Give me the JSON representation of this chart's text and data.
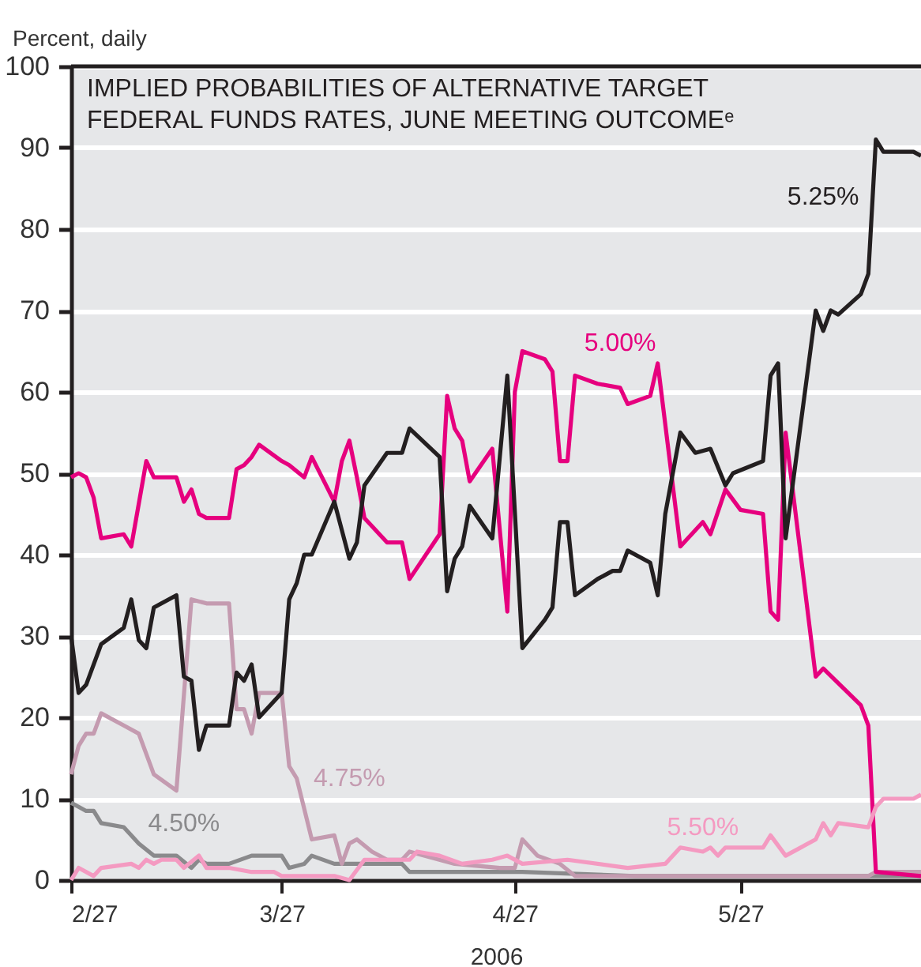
{
  "chart_data": {
    "type": "line",
    "title": "IMPLIED PROBABILITIES OF ALTERNATIVE TARGET\nFEDERAL FUNDS RATES, JUNE MEETING OUTCOMEᵉ",
    "ylabel": "Percent, daily",
    "xlabel": "2006",
    "xlim": [
      "2006-02-27",
      "2006-06-20"
    ],
    "xticks": [
      {
        "value": "2006-02-27",
        "label": "2/27"
      },
      {
        "value": "2006-03-27",
        "label": "3/27"
      },
      {
        "value": "2006-04-27",
        "label": "4/27"
      },
      {
        "value": "2006-05-27",
        "label": "5/27"
      }
    ],
    "ylim": [
      0,
      100
    ],
    "yticks": [
      0,
      10,
      20,
      30,
      40,
      50,
      60,
      70,
      80,
      90,
      100
    ],
    "grid": "y",
    "legend": false,
    "line_style": "solid",
    "marker": "none",
    "series": [
      {
        "name": "4.50%",
        "color": "#8a8a8c",
        "x": [
          "2006-02-27",
          "2006-02-28",
          "2006-03-01",
          "2006-03-02",
          "2006-03-03",
          "2006-03-06",
          "2006-03-08",
          "2006-03-10",
          "2006-03-13",
          "2006-03-15",
          "2006-03-16",
          "2006-03-17",
          "2006-03-20",
          "2006-03-23",
          "2006-03-27",
          "2006-03-28",
          "2006-03-30",
          "2006-03-31",
          "2006-04-03",
          "2006-04-05",
          "2006-04-08",
          "2006-04-12",
          "2006-04-13",
          "2006-04-18",
          "2006-04-21",
          "2006-04-28",
          "2006-05-13",
          "2006-06-20"
        ],
        "values": [
          9.5,
          9,
          8.5,
          8.5,
          7,
          6.5,
          4.5,
          3,
          3,
          1.5,
          2.5,
          2,
          2,
          3,
          3,
          1.5,
          2,
          3,
          2,
          2,
          2,
          2,
          1,
          1,
          1,
          1,
          0.5,
          0.5
        ]
      },
      {
        "name": "4.75%",
        "color": "#c49bb0",
        "x": [
          "2006-02-27",
          "2006-02-28",
          "2006-03-01",
          "2006-03-02",
          "2006-03-03",
          "2006-03-06",
          "2006-03-08",
          "2006-03-10",
          "2006-03-13",
          "2006-03-15",
          "2006-03-17",
          "2006-03-20",
          "2006-03-21",
          "2006-03-22",
          "2006-03-23",
          "2006-03-24",
          "2006-03-27",
          "2006-03-28",
          "2006-03-29",
          "2006-03-31",
          "2006-04-03",
          "2006-04-04",
          "2006-04-05",
          "2006-04-06",
          "2006-04-08",
          "2006-04-10",
          "2006-04-12",
          "2006-04-13",
          "2006-04-19",
          "2006-04-25",
          "2006-04-27",
          "2006-04-28",
          "2006-04-30",
          "2006-05-03",
          "2006-05-05",
          "2006-06-13",
          "2006-06-14",
          "2006-06-20"
        ],
        "values": [
          13,
          16.5,
          18,
          18,
          20.5,
          19,
          18,
          13,
          11,
          34.5,
          34,
          34,
          21,
          21,
          18,
          23,
          23,
          14,
          12.5,
          5,
          5.5,
          2,
          4.5,
          5,
          3.5,
          2.5,
          2.5,
          3.5,
          2,
          1.5,
          1.5,
          5,
          3,
          2,
          0.5,
          0.5,
          1,
          1
        ]
      },
      {
        "name": "5.00%",
        "color": "#e6007e",
        "x": [
          "2006-02-27",
          "2006-02-28",
          "2006-03-01",
          "2006-03-02",
          "2006-03-03",
          "2006-03-06",
          "2006-03-07",
          "2006-03-09",
          "2006-03-10",
          "2006-03-13",
          "2006-03-14",
          "2006-03-15",
          "2006-03-16",
          "2006-03-17",
          "2006-03-20",
          "2006-03-21",
          "2006-03-22",
          "2006-03-23",
          "2006-03-24",
          "2006-03-27",
          "2006-03-28",
          "2006-03-30",
          "2006-03-31",
          "2006-04-03",
          "2006-04-04",
          "2006-04-05",
          "2006-04-06",
          "2006-04-07",
          "2006-04-10",
          "2006-04-12",
          "2006-04-13",
          "2006-04-17",
          "2006-04-18",
          "2006-04-19",
          "2006-04-20",
          "2006-04-21",
          "2006-04-24",
          "2006-04-26",
          "2006-04-27",
          "2006-04-28",
          "2006-05-01",
          "2006-05-02",
          "2006-05-03",
          "2006-05-04",
          "2006-05-05",
          "2006-05-08",
          "2006-05-11",
          "2006-05-12",
          "2006-05-15",
          "2006-05-16",
          "2006-05-18",
          "2006-05-19",
          "2006-05-22",
          "2006-05-23",
          "2006-05-25",
          "2006-05-27",
          "2006-05-30",
          "2006-05-31",
          "2006-06-01",
          "2006-06-02",
          "2006-06-06",
          "2006-06-07",
          "2006-06-12",
          "2006-06-13",
          "2006-06-14",
          "2006-06-20"
        ],
        "values": [
          49.5,
          50,
          49.5,
          47,
          42,
          42.5,
          41,
          51.5,
          49.5,
          49.5,
          46.5,
          48,
          45,
          44.5,
          44.5,
          50.5,
          51,
          52,
          53.5,
          51.5,
          51,
          49.5,
          52,
          46.5,
          51.5,
          54,
          49.5,
          44.5,
          41.5,
          41.5,
          37,
          42.5,
          59.5,
          55.5,
          54,
          49,
          53,
          33,
          60,
          65,
          64,
          62.5,
          51.5,
          51.5,
          62,
          61,
          60.5,
          58.5,
          59.5,
          63.5,
          48.5,
          41,
          44,
          42.5,
          48,
          45.5,
          45,
          33,
          32,
          55,
          25,
          26,
          21.5,
          19,
          1,
          0.5
        ]
      },
      {
        "name": "5.25%",
        "color": "#231f20",
        "x": [
          "2006-02-27",
          "2006-02-28",
          "2006-03-01",
          "2006-03-03",
          "2006-03-06",
          "2006-03-07",
          "2006-03-08",
          "2006-03-09",
          "2006-03-10",
          "2006-03-13",
          "2006-03-14",
          "2006-03-15",
          "2006-03-16",
          "2006-03-17",
          "2006-03-20",
          "2006-03-21",
          "2006-03-22",
          "2006-03-23",
          "2006-03-24",
          "2006-03-27",
          "2006-03-28",
          "2006-03-29",
          "2006-03-30",
          "2006-03-31",
          "2006-04-03",
          "2006-04-05",
          "2006-04-06",
          "2006-04-07",
          "2006-04-10",
          "2006-04-12",
          "2006-04-13",
          "2006-04-17",
          "2006-04-18",
          "2006-04-19",
          "2006-04-20",
          "2006-04-21",
          "2006-04-24",
          "2006-04-26",
          "2006-04-28",
          "2006-05-01",
          "2006-05-02",
          "2006-05-03",
          "2006-05-04",
          "2006-05-05",
          "2006-05-08",
          "2006-05-10",
          "2006-05-11",
          "2006-05-12",
          "2006-05-15",
          "2006-05-16",
          "2006-05-17",
          "2006-05-19",
          "2006-05-21",
          "2006-05-23",
          "2006-05-25",
          "2006-05-26",
          "2006-05-30",
          "2006-05-31",
          "2006-06-01",
          "2006-06-02",
          "2006-06-06",
          "2006-06-07",
          "2006-06-08",
          "2006-06-09",
          "2006-06-12",
          "2006-06-13",
          "2006-06-14",
          "2006-06-15",
          "2006-06-19",
          "2006-06-20"
        ],
        "values": [
          30,
          23,
          24,
          29,
          31,
          34.5,
          29.5,
          28.5,
          33.5,
          35,
          25,
          24.5,
          16,
          19,
          19,
          25.5,
          24.5,
          26.5,
          20,
          23,
          34.5,
          36.5,
          40,
          40,
          46.5,
          39.5,
          41.5,
          48.5,
          52.5,
          52.5,
          55.5,
          52,
          35.5,
          39.5,
          41,
          46,
          42,
          62,
          28.5,
          32,
          33.5,
          44,
          44,
          35,
          37,
          38,
          38,
          40.5,
          39,
          35,
          45,
          55,
          52.5,
          53,
          48.5,
          50,
          51.5,
          62,
          63.5,
          42,
          70,
          67.5,
          70,
          69.5,
          72,
          74.5,
          91,
          89.5,
          89.5,
          89
        ]
      },
      {
        "name": "5.50%",
        "color": "#f49ac1",
        "x": [
          "2006-02-27",
          "2006-02-28",
          "2006-03-02",
          "2006-03-03",
          "2006-03-07",
          "2006-03-08",
          "2006-03-09",
          "2006-03-10",
          "2006-03-11",
          "2006-03-13",
          "2006-03-14",
          "2006-03-16",
          "2006-03-17",
          "2006-03-20",
          "2006-03-23",
          "2006-03-26",
          "2006-03-27",
          "2006-03-29",
          "2006-04-03",
          "2006-04-05",
          "2006-04-07",
          "2006-04-13",
          "2006-04-14",
          "2006-04-17",
          "2006-04-20",
          "2006-04-24",
          "2006-04-26",
          "2006-04-28",
          "2006-05-04",
          "2006-05-12",
          "2006-05-17",
          "2006-05-19",
          "2006-05-22",
          "2006-05-23",
          "2006-05-24",
          "2006-05-25",
          "2006-05-30",
          "2006-05-31",
          "2006-06-02",
          "2006-06-06",
          "2006-06-07",
          "2006-06-08",
          "2006-06-09",
          "2006-06-13",
          "2006-06-14",
          "2006-06-15",
          "2006-06-19",
          "2006-06-20"
        ],
        "values": [
          0,
          1.5,
          0.5,
          1.5,
          2,
          1.5,
          2.5,
          2,
          2.5,
          2.5,
          1.5,
          3,
          1.5,
          1.5,
          1,
          1,
          0.5,
          0.5,
          0.5,
          0,
          2.5,
          2.5,
          3.5,
          3,
          2,
          2.5,
          3,
          2,
          2.5,
          1.5,
          2,
          4,
          3.5,
          4,
          3,
          4,
          4,
          5.5,
          3,
          5,
          7,
          5.5,
          7,
          6.5,
          9,
          10,
          10,
          10.5
        ]
      }
    ]
  }
}
